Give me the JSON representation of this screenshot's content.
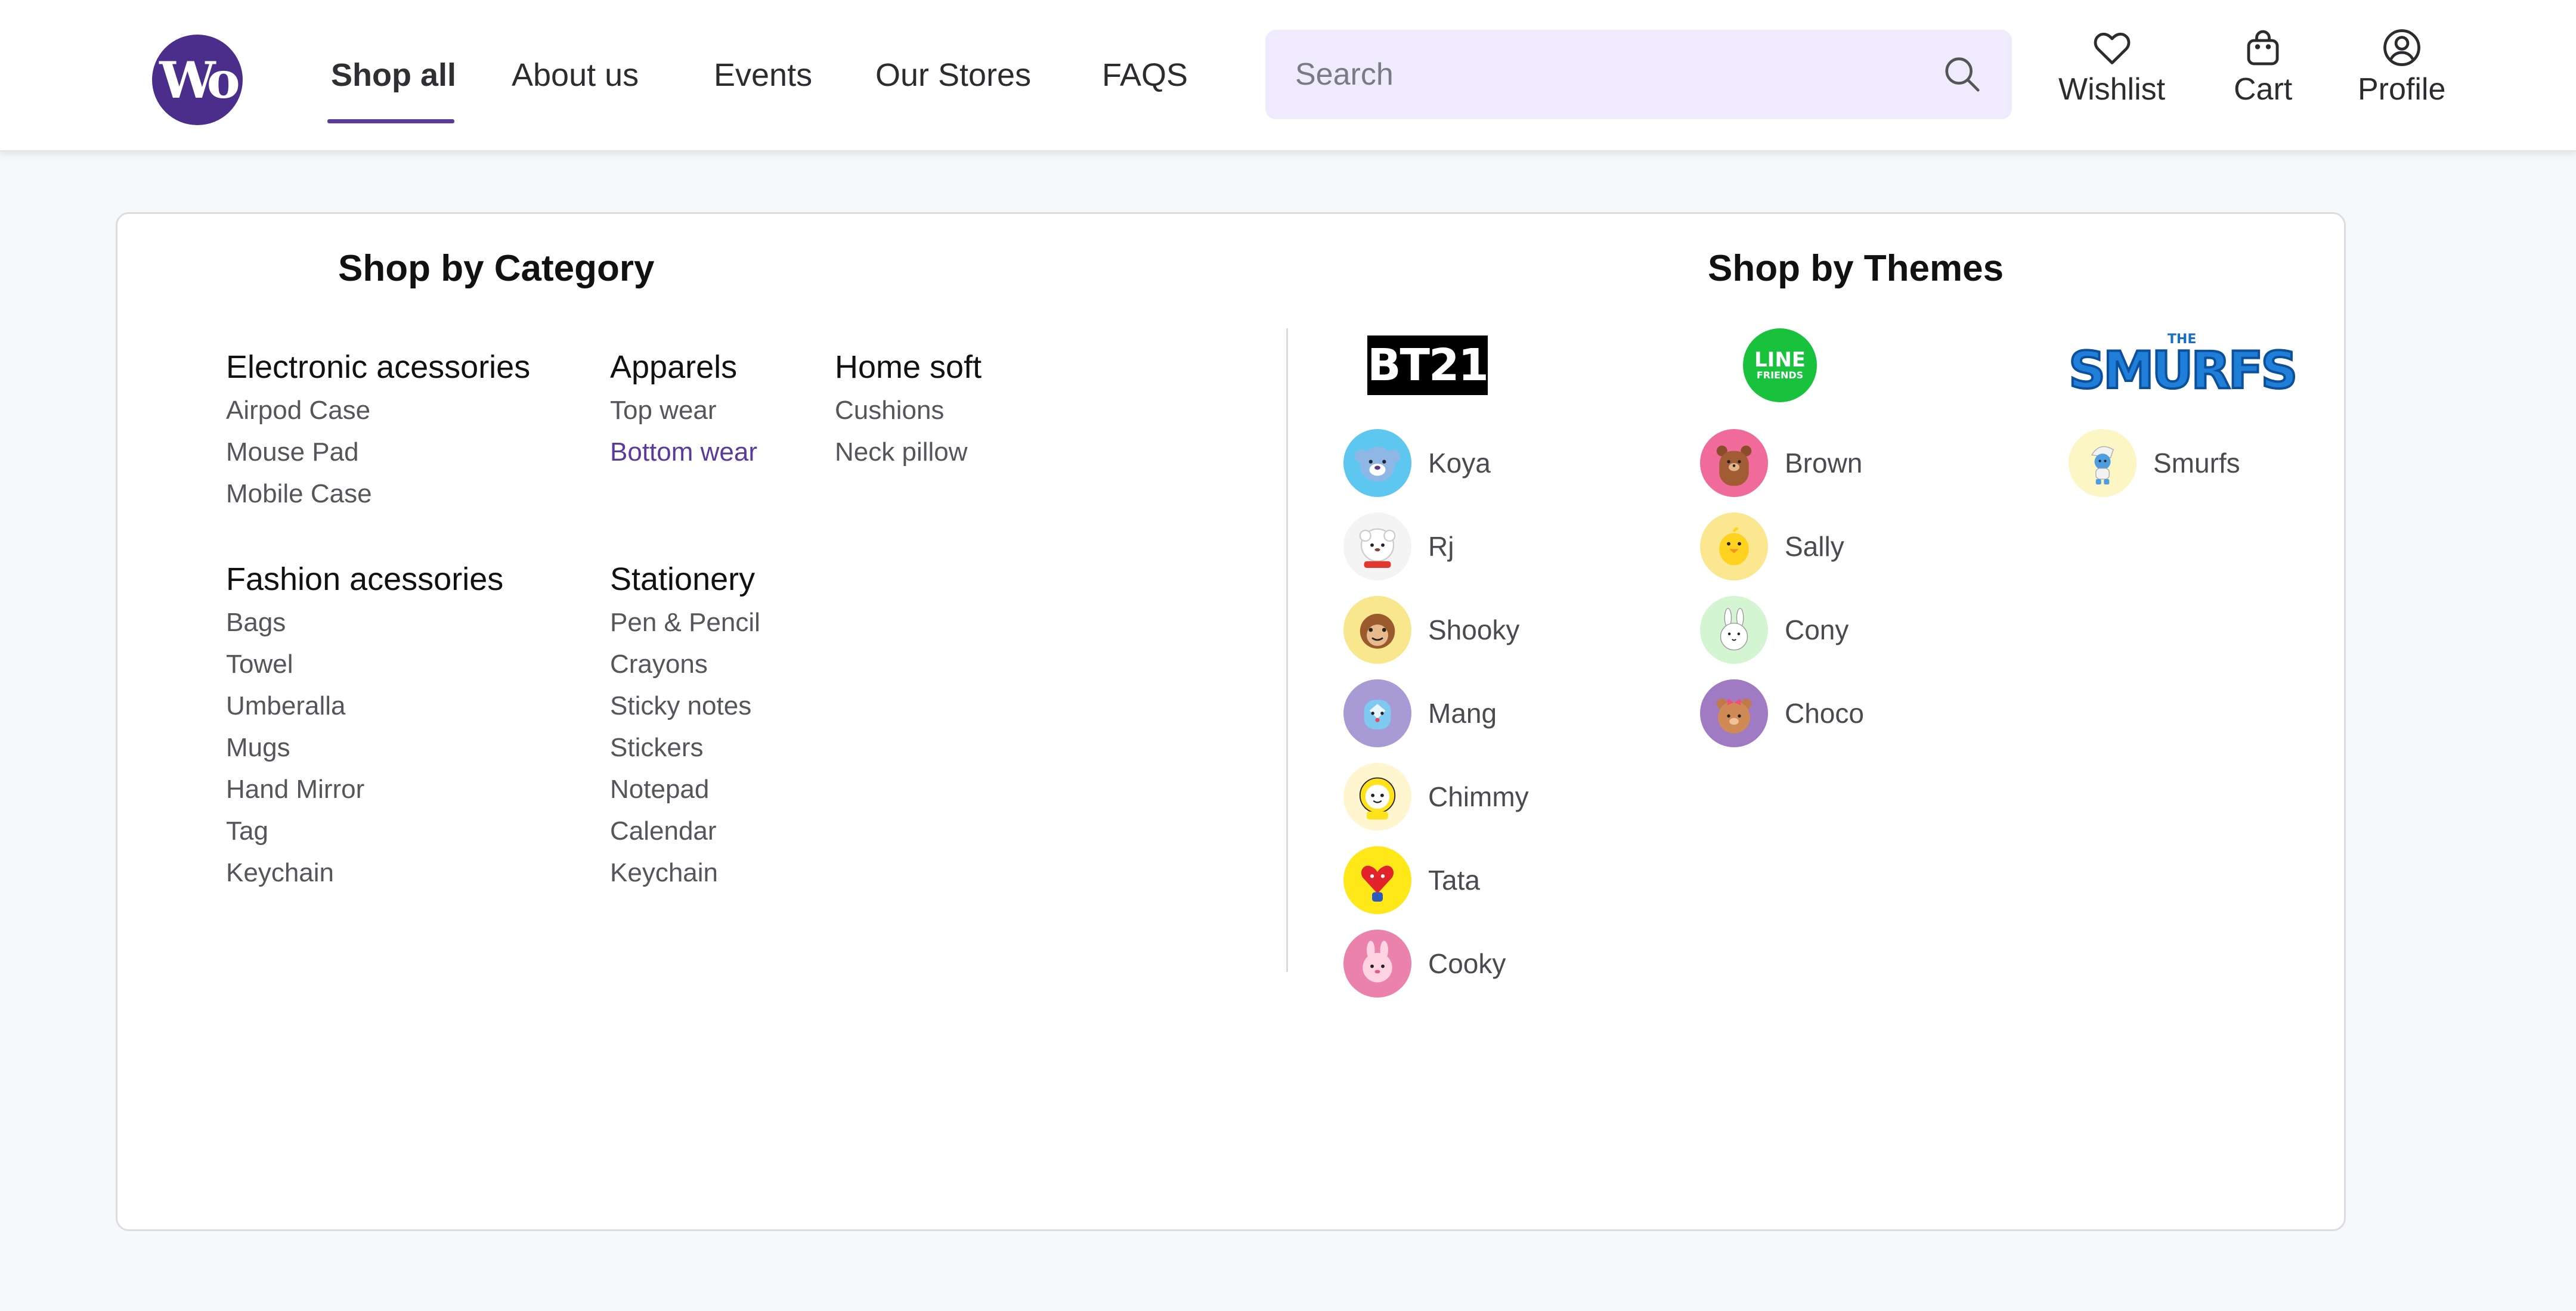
{
  "brand": {
    "logo_text": "Wo",
    "accent": "#5b3b99"
  },
  "nav": {
    "items": [
      {
        "label": "Shop all",
        "active": true
      },
      {
        "label": "About us"
      },
      {
        "label": "Events"
      },
      {
        "label": "Our Stores"
      },
      {
        "label": "FAQS"
      }
    ]
  },
  "search": {
    "placeholder": "Search",
    "icon": "search-icon"
  },
  "header_actions": [
    {
      "label": "Wishlist",
      "icon": "heart-icon"
    },
    {
      "label": "Cart",
      "icon": "bag-icon"
    },
    {
      "label": "Profile",
      "icon": "user-circle-icon"
    }
  ],
  "category": {
    "title": "Shop by Category",
    "groups": [
      {
        "title": "Electronic acessories",
        "items": [
          "Airpod Case",
          "Mouse Pad",
          "Mobile Case"
        ]
      },
      {
        "title": "Apparels",
        "items": [
          "Top wear",
          "Bottom wear"
        ],
        "highlighted": "Bottom wear"
      },
      {
        "title": "Home soft",
        "items": [
          "Cushions",
          "Neck pillow"
        ]
      },
      {
        "title": "Fashion acessories",
        "items": [
          "Bags",
          "Towel",
          "Umberalla",
          "Mugs",
          "Hand Mirror",
          "Tag",
          "Keychain"
        ]
      },
      {
        "title": "Stationery",
        "items": [
          "Pen & Pencil",
          "Crayons",
          "Sticky notes",
          "Stickers",
          "Notepad",
          "Calendar",
          "Keychain"
        ]
      }
    ]
  },
  "themes": {
    "title": "Shop by Themes",
    "bt21": {
      "logo_text": "BT21",
      "characters": [
        "Koya",
        "Rj",
        "Shooky",
        "Mang",
        "Chimmy",
        "Tata",
        "Cooky"
      ]
    },
    "line_friends": {
      "logo_line1": "LINE",
      "logo_line2": "FRIENDS",
      "characters": [
        "Brown",
        "Sally",
        "Cony",
        "Choco"
      ]
    },
    "smurfs": {
      "logo_small": "THE",
      "logo_big": "SMURFS",
      "characters": [
        "Smurfs"
      ]
    }
  }
}
